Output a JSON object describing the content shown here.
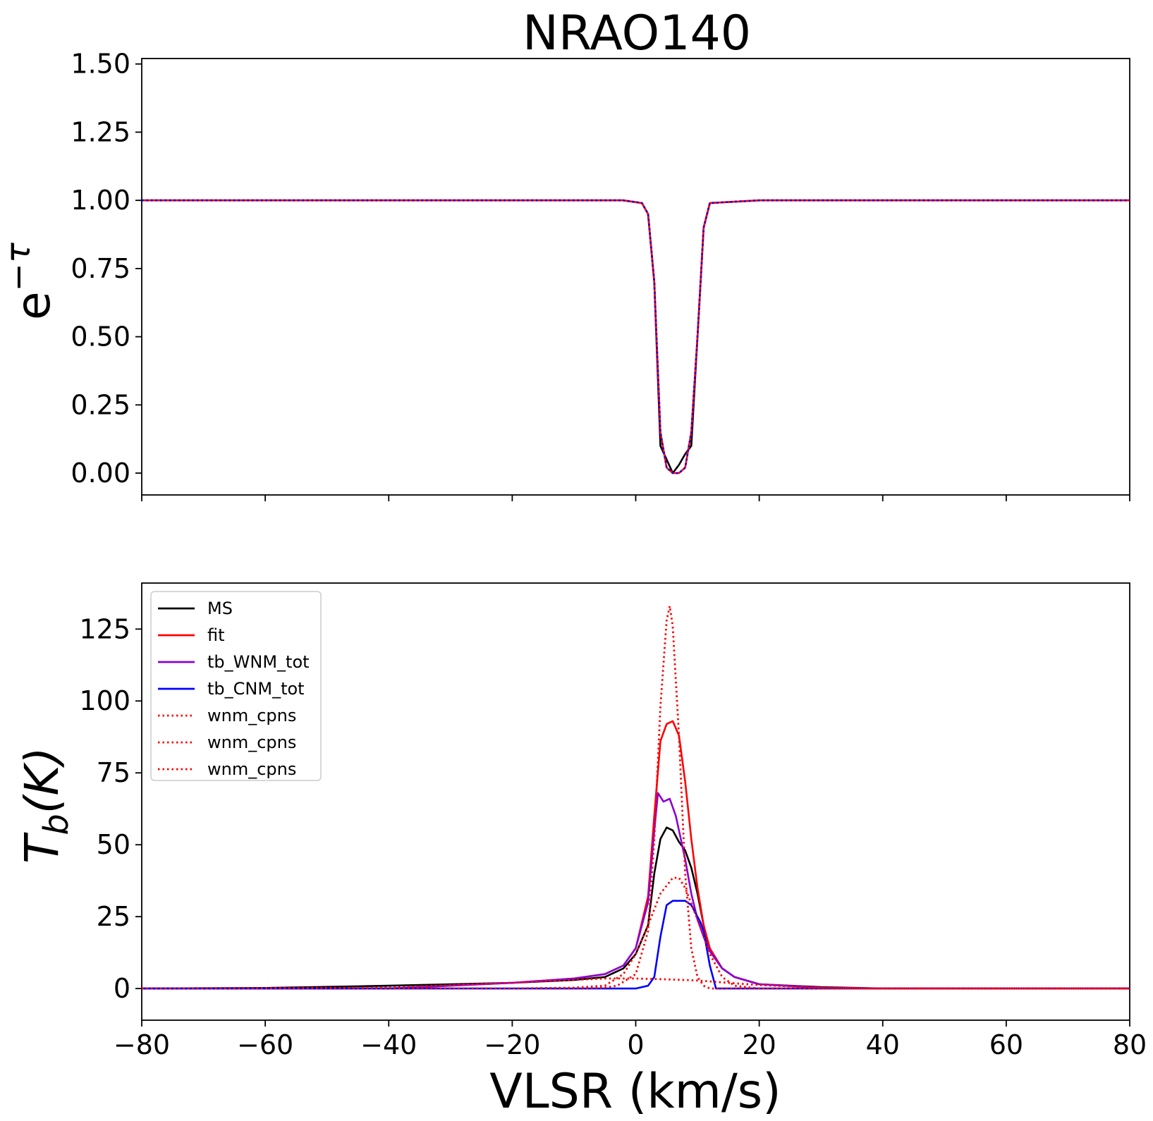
{
  "figure": {
    "title": "NRAO140",
    "xlabel": "VLSR (km/s)",
    "top_ylabel_base": "e",
    "top_ylabel_sup": "−τ",
    "bottom_ylabel_main": "T",
    "bottom_ylabel_sub": "b",
    "bottom_ylabel_rest": "(K)"
  },
  "chart_data": [
    {
      "type": "line",
      "title": "NRAO140",
      "xlabel": "",
      "ylabel": "e^−τ",
      "xlim": [
        -80,
        80
      ],
      "ylim": [
        -0.08,
        1.52
      ],
      "xticks": [
        -80,
        -60,
        -40,
        -20,
        0,
        20,
        40,
        60,
        80
      ],
      "xtick_labels_shown": false,
      "yticks": [
        0.0,
        0.25,
        0.5,
        0.75,
        1.0,
        1.25,
        1.5
      ],
      "ytick_labels": [
        "0.00",
        "0.25",
        "0.50",
        "0.75",
        "1.00",
        "1.25",
        "1.50"
      ],
      "grid": false,
      "legend": null,
      "series": [
        {
          "color": "#000000",
          "style": "solid",
          "x": [
            -80,
            -60,
            -40,
            -20,
            -2,
            1,
            2,
            3,
            4,
            5,
            6,
            7,
            8,
            9,
            10,
            11,
            12,
            20,
            40,
            60,
            80
          ],
          "y": [
            1.0,
            1.0,
            1.0,
            1.0,
            1.0,
            0.99,
            0.95,
            0.7,
            0.1,
            0.05,
            0.0,
            0.03,
            0.07,
            0.1,
            0.5,
            0.9,
            0.99,
            1.0,
            1.0,
            1.0,
            1.0
          ]
        },
        {
          "color": "#ff0000",
          "style": "solid",
          "x": [
            -80,
            -60,
            -40,
            -20,
            -2,
            1,
            2,
            3,
            4,
            5,
            6,
            7,
            8,
            9,
            10,
            11,
            12,
            20,
            40,
            60,
            80
          ],
          "y": [
            1.0,
            1.0,
            1.0,
            1.0,
            1.0,
            0.99,
            0.95,
            0.7,
            0.15,
            0.02,
            0.0,
            0.0,
            0.02,
            0.15,
            0.5,
            0.9,
            0.99,
            1.0,
            1.0,
            1.0,
            1.0
          ]
        },
        {
          "color": "#0000ff",
          "style": "dotted",
          "x": [
            -80,
            -60,
            -40,
            -20,
            -2,
            1,
            2,
            3,
            4,
            5,
            6,
            7,
            8,
            9,
            10,
            11,
            12,
            20,
            40,
            60,
            80
          ],
          "y": [
            1.0,
            1.0,
            1.0,
            1.0,
            1.0,
            0.99,
            0.95,
            0.7,
            0.15,
            0.02,
            0.0,
            0.0,
            0.02,
            0.15,
            0.5,
            0.9,
            0.99,
            1.0,
            1.0,
            1.0,
            1.0
          ]
        }
      ]
    },
    {
      "type": "line",
      "xlabel": "VLSR (km/s)",
      "ylabel": "T_b(K)",
      "xlim": [
        -80,
        80
      ],
      "ylim": [
        -11,
        141
      ],
      "xticks": [
        -80,
        -60,
        -40,
        -20,
        0,
        20,
        40,
        60,
        80
      ],
      "xtick_labels": [
        "−80",
        "−60",
        "−40",
        "−20",
        "0",
        "20",
        "40",
        "60",
        "80"
      ],
      "yticks": [
        0,
        25,
        50,
        75,
        100,
        125
      ],
      "ytick_labels": [
        "0",
        "25",
        "50",
        "75",
        "100",
        "125"
      ],
      "grid": false,
      "legend": "top-left",
      "series": [
        {
          "name": "MS",
          "color": "#000000",
          "style": "solid",
          "x": [
            -80,
            -60,
            -40,
            -20,
            -10,
            -5,
            -2,
            0,
            2,
            3,
            4,
            5,
            6,
            7,
            8,
            9,
            10,
            11,
            12,
            14,
            16,
            20,
            30,
            40,
            60,
            80
          ],
          "y": [
            0,
            0.2,
            1,
            2,
            3,
            4,
            7,
            12,
            22,
            40,
            52,
            56,
            55,
            51,
            48,
            42,
            33,
            22,
            13,
            7,
            4,
            1.5,
            0.5,
            0,
            0,
            0
          ]
        },
        {
          "name": "fit",
          "color": "#ff0000",
          "style": "solid",
          "x": [
            -80,
            -60,
            -40,
            -20,
            -10,
            -5,
            -2,
            0,
            2,
            3,
            4,
            5,
            6,
            7,
            8,
            9,
            10,
            11,
            12,
            14,
            16,
            20,
            30,
            40,
            60,
            80
          ],
          "y": [
            0,
            0,
            0,
            2,
            3.5,
            5,
            8,
            14,
            32,
            60,
            86,
            92,
            93,
            88,
            72,
            52,
            35,
            22,
            14,
            7,
            4,
            1.5,
            0.3,
            0,
            0,
            0
          ]
        },
        {
          "name": "tb_WNM_tot",
          "color": "#8a00d4",
          "style": "solid",
          "x": [
            -80,
            -60,
            -40,
            -20,
            -10,
            -5,
            -2,
            0,
            2,
            3,
            3.6,
            4.5,
            5.5,
            6.5,
            8,
            9,
            10,
            11,
            12,
            14,
            16,
            20,
            30,
            40,
            60,
            80
          ],
          "y": [
            0,
            0,
            0,
            2,
            3.5,
            5,
            8,
            14,
            30,
            55,
            68,
            65,
            66,
            60,
            45,
            33,
            24,
            18,
            13,
            7,
            4,
            1.5,
            0.3,
            0,
            0,
            0
          ]
        },
        {
          "name": "tb_CNM_tot",
          "color": "#0000ff",
          "style": "solid",
          "x": [
            -80,
            -5,
            0,
            2,
            3,
            4,
            5,
            6,
            7,
            8,
            9,
            10,
            10.5,
            11,
            12,
            13,
            20,
            80
          ],
          "y": [
            0,
            0,
            0,
            1,
            4,
            18,
            29,
            30.5,
            30.5,
            30.5,
            29,
            25,
            23,
            20,
            8,
            0,
            0,
            0
          ]
        },
        {
          "name": "wnm_cpns",
          "color": "#ff0000",
          "style": "dotted",
          "x": [
            -80,
            -10,
            -5,
            -3,
            0,
            2,
            3,
            4,
            5,
            5.5,
            6,
            7,
            8,
            9,
            10,
            11,
            12,
            13,
            80
          ],
          "y": [
            0,
            0,
            0.3,
            1,
            5,
            20,
            52,
            98,
            128,
            133,
            126,
            88,
            40,
            14,
            4,
            1,
            0,
            0,
            0
          ]
        },
        {
          "name": "wnm_cpns",
          "color": "#ff0000",
          "style": "dotted",
          "x": [
            -80,
            -20,
            -10,
            -5,
            -2,
            0,
            2,
            4,
            6,
            7,
            8,
            10,
            12,
            14,
            16,
            20,
            80
          ],
          "y": [
            0,
            0,
            0.3,
            1,
            5,
            12,
            22,
            33,
            38.5,
            38.5,
            35,
            24,
            12,
            4,
            1,
            0,
            0
          ]
        },
        {
          "name": "wnm_cpns",
          "color": "#ff0000",
          "style": "dotted",
          "x": [
            -80,
            -40,
            -20,
            -10,
            -5,
            0,
            5,
            10,
            15,
            20,
            30,
            40,
            80
          ],
          "y": [
            0,
            0.3,
            2,
            3,
            3.5,
            3.5,
            3.2,
            2.8,
            2,
            1.2,
            0.3,
            0,
            0
          ]
        }
      ]
    }
  ]
}
